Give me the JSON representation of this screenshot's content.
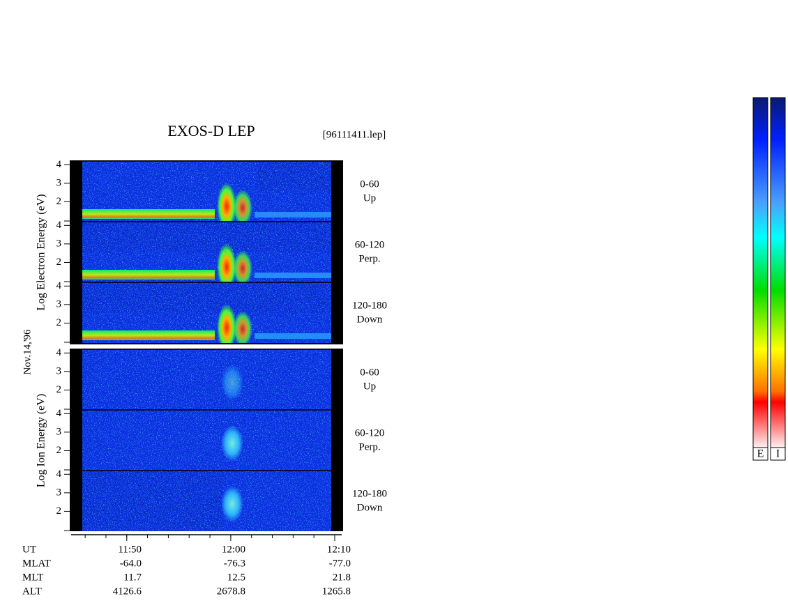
{
  "title": "EXOS-D LEP",
  "file": "[96111411.lep]",
  "date": "Nov.14,'96",
  "species": [
    {
      "ylabel": "Log Electron Energy (eV)",
      "ylim": [
        1,
        4.2
      ],
      "yticks": [
        2,
        3,
        4
      ],
      "panels": [
        {
          "range": "0-60",
          "direction": "Up"
        },
        {
          "range": "60-120",
          "direction": "Perp."
        },
        {
          "range": "120-180",
          "direction": "Down"
        }
      ]
    },
    {
      "ylabel": "Log Ion Energy (eV)",
      "ylim": [
        1,
        4.2
      ],
      "yticks": [
        2,
        3,
        4
      ],
      "panels": [
        {
          "range": "0-60",
          "direction": "Up"
        },
        {
          "range": "60-120",
          "direction": "Perp."
        },
        {
          "range": "120-180",
          "direction": "Down"
        }
      ]
    }
  ],
  "time_axis": {
    "xlim": [
      704.65,
      730.67
    ],
    "xticks": [
      {
        "value": 710,
        "label": "11:50"
      },
      {
        "value": 720,
        "label": "12:00"
      },
      {
        "value": 730,
        "label": "12:10"
      }
    ],
    "minor_xticks": [
      706,
      708,
      710,
      712,
      714,
      716,
      718,
      720,
      722,
      724,
      726,
      728,
      730
    ]
  },
  "ephemeris": {
    "rows": [
      {
        "label": "UT"
      },
      {
        "label": "MLAT",
        "values": [
          "-64.0",
          "-76.3",
          "-77.0"
        ]
      },
      {
        "label": "MLT",
        "values": [
          "11.7",
          "12.5",
          "21.8"
        ]
      },
      {
        "label": "ALT",
        "values": [
          "4126.6",
          "2678.8",
          "1265.8"
        ]
      }
    ]
  },
  "colorbars": [
    {
      "label": "E"
    },
    {
      "label": "I"
    }
  ]
}
